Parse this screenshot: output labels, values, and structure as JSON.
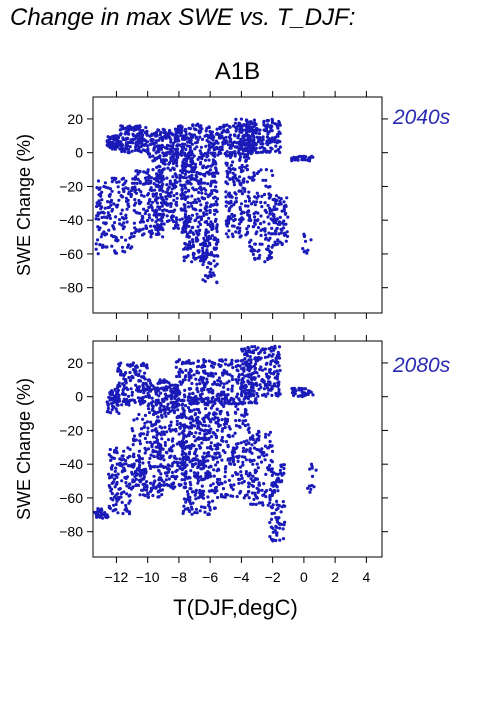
{
  "title": "Change in max SWE vs. T_DJF:",
  "scenario": "A1B",
  "colors": {
    "points": "#1a1ab8",
    "period_label": "#2a2ab4"
  },
  "chart_data": [
    {
      "type": "scatter",
      "panel_label": "2040s",
      "ylabel": "SWE Change (%)",
      "xlim": [
        -13.5,
        5
      ],
      "ylim": [
        -95,
        33
      ],
      "yticks": [
        20,
        0,
        -20,
        -40,
        -60,
        -80
      ],
      "xticks": [
        -12,
        -10,
        -8,
        -6,
        -4,
        -2,
        0,
        2,
        4
      ],
      "x_tick_labels_shown": false,
      "clusters": [
        {
          "x": [
            -12.6,
            -11.8
          ],
          "y": [
            2,
            10
          ],
          "n": 60
        },
        {
          "x": [
            -11.8,
            -10.0
          ],
          "y": [
            0,
            16
          ],
          "n": 140
        },
        {
          "x": [
            -10.0,
            -8.0
          ],
          "y": [
            -5,
            14
          ],
          "n": 160
        },
        {
          "x": [
            -8.2,
            -3.0
          ],
          "y": [
            -2,
            17
          ],
          "n": 320
        },
        {
          "x": [
            -4.5,
            -1.5
          ],
          "y": [
            0,
            20
          ],
          "n": 200
        },
        {
          "x": [
            -0.8,
            0.6
          ],
          "y": [
            -5,
            -2
          ],
          "n": 40
        },
        {
          "x": [
            -13.3,
            -11.0
          ],
          "y": [
            -60,
            -15
          ],
          "n": 160
        },
        {
          "x": [
            -11.0,
            -9.0
          ],
          "y": [
            -50,
            -10
          ],
          "n": 180
        },
        {
          "x": [
            -9.5,
            -7.5
          ],
          "y": [
            -45,
            -5
          ],
          "n": 180
        },
        {
          "x": [
            -7.8,
            -5.5
          ],
          "y": [
            -65,
            0
          ],
          "n": 380
        },
        {
          "x": [
            -6.5,
            -5.5
          ],
          "y": [
            -78,
            -50
          ],
          "n": 50
        },
        {
          "x": [
            -5.0,
            -3.5
          ],
          "y": [
            -50,
            0
          ],
          "n": 160
        },
        {
          "x": [
            -3.5,
            -2.0
          ],
          "y": [
            -65,
            -10
          ],
          "n": 120
        },
        {
          "x": [
            -2.0,
            -1.0
          ],
          "y": [
            -55,
            -25
          ],
          "n": 70
        },
        {
          "x": [
            -0.2,
            0.5
          ],
          "y": [
            -60,
            -48
          ],
          "n": 10
        }
      ]
    },
    {
      "type": "scatter",
      "panel_label": "2080s",
      "xlabel": "T(DJF,degC)",
      "ylabel": "SWE Change (%)",
      "xlim": [
        -13.5,
        5
      ],
      "ylim": [
        -95,
        33
      ],
      "yticks": [
        20,
        0,
        -20,
        -40,
        -60,
        -80
      ],
      "xticks": [
        -12,
        -10,
        -8,
        -6,
        -4,
        -2,
        0,
        2,
        4
      ],
      "x_tick_labels": [
        "−12",
        "−10",
        "−8",
        "−6",
        "−4",
        "−2",
        "0",
        "2",
        "4"
      ],
      "clusters": [
        {
          "x": [
            -12.6,
            -11.8
          ],
          "y": [
            -10,
            5
          ],
          "n": 50
        },
        {
          "x": [
            -12.0,
            -10.0
          ],
          "y": [
            -5,
            20
          ],
          "n": 140
        },
        {
          "x": [
            -10.0,
            -8.0
          ],
          "y": [
            -10,
            10
          ],
          "n": 150
        },
        {
          "x": [
            -8.2,
            -3.0
          ],
          "y": [
            -5,
            22
          ],
          "n": 320
        },
        {
          "x": [
            -4.0,
            -1.5
          ],
          "y": [
            0,
            30
          ],
          "n": 200
        },
        {
          "x": [
            -0.8,
            0.6
          ],
          "y": [
            0,
            5
          ],
          "n": 40
        },
        {
          "x": [
            -13.4,
            -12.5
          ],
          "y": [
            -72,
            -66
          ],
          "n": 30
        },
        {
          "x": [
            -12.5,
            -11.0
          ],
          "y": [
            -70,
            -30
          ],
          "n": 120
        },
        {
          "x": [
            -11.0,
            -9.0
          ],
          "y": [
            -60,
            -10
          ],
          "n": 180
        },
        {
          "x": [
            -9.5,
            -7.5
          ],
          "y": [
            -55,
            -10
          ],
          "n": 180
        },
        {
          "x": [
            -7.8,
            -5.5
          ],
          "y": [
            -70,
            0
          ],
          "n": 380
        },
        {
          "x": [
            -5.5,
            -3.5
          ],
          "y": [
            -60,
            0
          ],
          "n": 180
        },
        {
          "x": [
            -3.5,
            -2.0
          ],
          "y": [
            -65,
            -20
          ],
          "n": 120
        },
        {
          "x": [
            -2.2,
            -1.2
          ],
          "y": [
            -86,
            -40
          ],
          "n": 90
        },
        {
          "x": [
            0.2,
            0.8
          ],
          "y": [
            -58,
            -40
          ],
          "n": 12
        }
      ]
    }
  ]
}
